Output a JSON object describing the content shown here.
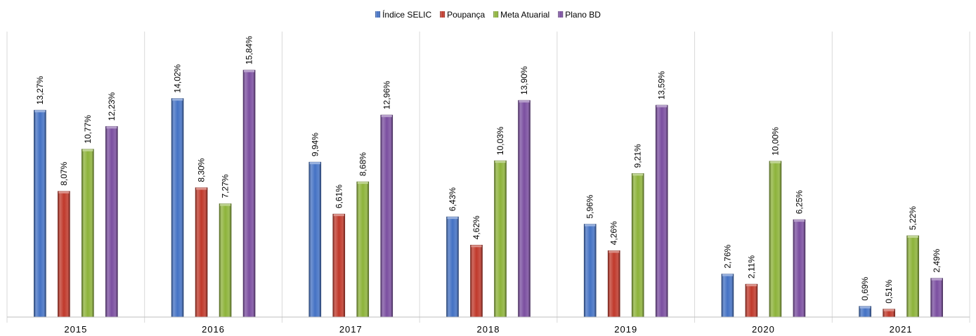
{
  "chart_data": {
    "type": "bar",
    "categories": [
      "2015",
      "2016",
      "2017",
      "2018",
      "2019",
      "2020",
      "2021"
    ],
    "series": [
      {
        "name": "Índice SELIC",
        "color": "#4472c4",
        "values": [
          13.27,
          14.02,
          9.94,
          6.43,
          5.96,
          2.76,
          0.69
        ],
        "labels": [
          "13,27%",
          "14,02%",
          "9,94%",
          "6,43%",
          "5,96%",
          "2,76%",
          "0,69%"
        ]
      },
      {
        "name": "Poupança",
        "color": "#c0392b",
        "values": [
          8.07,
          8.3,
          6.61,
          4.62,
          4.26,
          2.11,
          0.51
        ],
        "labels": [
          "8,07%",
          "8,30%",
          "6,61%",
          "4,62%",
          "4,26%",
          "2,11%",
          "0,51%"
        ]
      },
      {
        "name": "Meta Atuarial",
        "color": "#8db33a",
        "values": [
          10.77,
          7.27,
          8.68,
          10.03,
          9.21,
          10.0,
          5.22
        ],
        "labels": [
          "10,77%",
          "7,27%",
          "8,68%",
          "10,03%",
          "9,21%",
          "10,00%",
          "5,22%"
        ]
      },
      {
        "name": "Plano BD",
        "color": "#7b4fa0",
        "values": [
          12.23,
          15.84,
          12.96,
          13.9,
          13.59,
          6.25,
          2.49
        ],
        "labels": [
          "12,23%",
          "15,84%",
          "12,96%",
          "13,90%",
          "13,59%",
          "6,25%",
          "2,49%"
        ]
      }
    ],
    "ylim": [
      0,
      16
    ],
    "grid": false,
    "legend": "top-center",
    "title": "",
    "xlabel": "",
    "ylabel": ""
  }
}
